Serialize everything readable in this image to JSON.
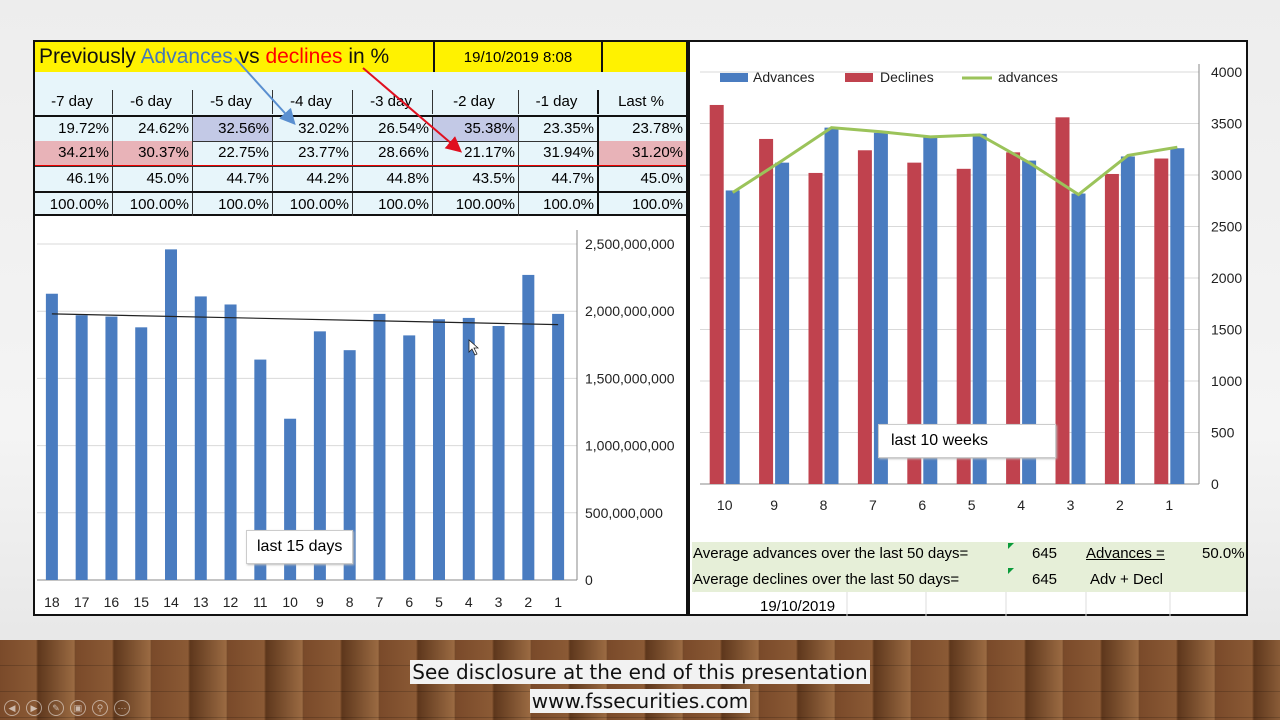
{
  "table": {
    "title_pre": "Previously ",
    "title_adv": "Advances",
    "title_vs": " vs ",
    "title_dec": "declines",
    "title_post": " in %",
    "timestamp": "19/10/2019 8:08",
    "headers": [
      "-7 day",
      "-6 day",
      "-5 day",
      "-4 day",
      "-3 day",
      "-2 day",
      "-1 day",
      "Last %"
    ],
    "advances": [
      "19.72%",
      "24.62%",
      "32.56%",
      "32.02%",
      "26.54%",
      "35.38%",
      "23.35%",
      "23.78%"
    ],
    "declines": [
      "34.21%",
      "30.37%",
      "22.75%",
      "23.77%",
      "28.66%",
      "21.17%",
      "31.94%",
      "31.20%"
    ],
    "row3": [
      "46.1%",
      "45.0%",
      "44.7%",
      "44.2%",
      "44.8%",
      "43.5%",
      "44.7%",
      "45.0%"
    ],
    "row4": [
      "100.00%",
      "100.00%",
      "100.0%",
      "100.00%",
      "100.0%",
      "100.00%",
      "100.0%",
      "100.0%"
    ]
  },
  "chart_data": [
    {
      "type": "bar",
      "categories": [
        "18",
        "17",
        "16",
        "15",
        "14",
        "13",
        "12",
        "11",
        "10",
        "9",
        "8",
        "7",
        "6",
        "5",
        "4",
        "3",
        "2",
        "1"
      ],
      "values": [
        2130000000,
        1970000000,
        1960000000,
        1880000000,
        2460000000,
        2110000000,
        2050000000,
        1640000000,
        1200000000,
        1850000000,
        1710000000,
        1980000000,
        1820000000,
        1940000000,
        1950000000,
        1890000000,
        2270000000,
        1980000000
      ],
      "trendline": [
        1980000000,
        1900000000
      ],
      "y_ticks": [
        "2,500,000,000",
        "2,000,000,000",
        "1,500,000,000",
        "1,000,000,000",
        "500,000,000",
        "0"
      ],
      "ylim": [
        0,
        2500000000
      ],
      "annotation": "last 15 days",
      "colors": {
        "bar": "#4a7cc0",
        "trend": "#222222"
      }
    },
    {
      "type": "bar",
      "categories": [
        "10",
        "9",
        "8",
        "7",
        "6",
        "5",
        "4",
        "3",
        "2",
        "1"
      ],
      "series": [
        {
          "name": "Advances",
          "values": [
            2850,
            3120,
            3460,
            3410,
            3380,
            3400,
            3140,
            2820,
            3180,
            3260
          ],
          "color": "#4a7cc0"
        },
        {
          "name": "Declines",
          "values": [
            3680,
            3350,
            3020,
            3240,
            3120,
            3060,
            3220,
            3560,
            3010,
            3160
          ],
          "color": "#c0424e"
        },
        {
          "name": "advances",
          "type": "line",
          "values": [
            2830,
            3140,
            3460,
            3420,
            3370,
            3390,
            3120,
            2810,
            3190,
            3270
          ],
          "color": "#9bc35a"
        }
      ],
      "y_ticks": [
        "4000",
        "3500",
        "3000",
        "2500",
        "2000",
        "1500",
        "1000",
        "500",
        "0"
      ],
      "ylim": [
        0,
        4000
      ],
      "legend": "top-left",
      "annotation": "last 10 weeks"
    }
  ],
  "stats": {
    "avg_adv_label": "Average advances over the last 50 days=",
    "avg_adv_value": "645",
    "advances_label": "Advances =",
    "advances_pct": "50.0%",
    "avg_dec_label": "Average declines over the last 50 days=",
    "avg_dec_value": "645",
    "adv_decl_label": "Adv + Decl",
    "date": "19/10/2019"
  },
  "footer": {
    "line1": "See disclosure at the end of this presentation",
    "line2": "www.fssecurities.com"
  },
  "nav_icons": [
    "prev-icon",
    "next-icon",
    "pen-icon",
    "slides-icon",
    "zoom-icon",
    "more-icon"
  ]
}
